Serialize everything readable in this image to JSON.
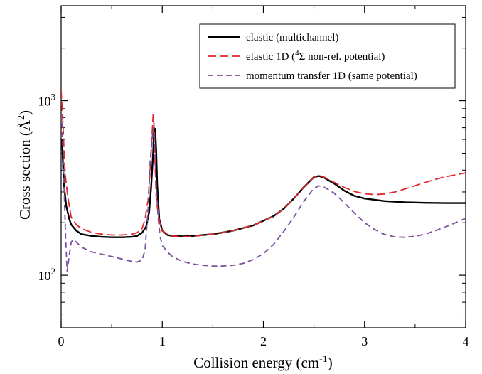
{
  "chart_data": {
    "type": "line",
    "title": "",
    "xlabel": "Collision energy (cm",
    "xlabel_sup": "-1",
    "xlabel_tail": ")",
    "ylabel": "Cross section (Å",
    "ylabel_sup": "2",
    "ylabel_tail": ")",
    "y_scale": "log",
    "xlim": [
      0,
      4
    ],
    "ylim": [
      50,
      3500
    ],
    "x_ticks": [
      0,
      1,
      2,
      3,
      4
    ],
    "x_tick_labels": [
      "0",
      "1",
      "2",
      "3",
      "4"
    ],
    "y_ticks": [
      100,
      1000
    ],
    "y_tick_label_base": [
      "10",
      "10"
    ],
    "y_tick_label_exp": [
      "2",
      "3"
    ],
    "grid": false,
    "legend_position": "top-right",
    "legend": [
      {
        "series": 0,
        "parts": [
          "elastic (multichannel)"
        ]
      },
      {
        "series": 1,
        "parts": [
          "elastic 1D (",
          "4",
          "Σ non-rel. potential)"
        ]
      },
      {
        "series": 2,
        "parts": [
          "momentum transfer 1D (same potential)"
        ]
      }
    ],
    "series": [
      {
        "color": "#000000",
        "dash": "solid",
        "x": [
          0.01,
          0.02,
          0.03,
          0.05,
          0.08,
          0.1,
          0.15,
          0.2,
          0.3,
          0.4,
          0.5,
          0.6,
          0.7,
          0.75,
          0.8,
          0.84,
          0.87,
          0.89,
          0.91,
          0.92,
          0.93,
          0.94,
          0.95,
          0.97,
          1.0,
          1.05,
          1.1,
          1.2,
          1.3,
          1.5,
          1.7,
          1.9,
          2.1,
          2.2,
          2.3,
          2.4,
          2.5,
          2.55,
          2.6,
          2.7,
          2.8,
          2.9,
          3.0,
          3.2,
          3.4,
          3.6,
          3.8,
          4.0
        ],
        "y": [
          600,
          420,
          320,
          250,
          210,
          195,
          180,
          172,
          168,
          166,
          165,
          165,
          166,
          168,
          175,
          190,
          230,
          320,
          500,
          680,
          690,
          520,
          330,
          210,
          180,
          170,
          168,
          167,
          168,
          172,
          180,
          193,
          218,
          240,
          275,
          320,
          365,
          370,
          362,
          335,
          305,
          285,
          275,
          266,
          262,
          260,
          259,
          259
        ]
      },
      {
        "color": "#e0282c",
        "dash": "long-dash",
        "x": [
          0.0,
          0.01,
          0.02,
          0.03,
          0.04,
          0.06,
          0.08,
          0.1,
          0.15,
          0.2,
          0.3,
          0.4,
          0.5,
          0.6,
          0.7,
          0.75,
          0.8,
          0.83,
          0.86,
          0.88,
          0.9,
          0.91,
          0.92,
          0.93,
          0.94,
          0.96,
          0.98,
          1.0,
          1.05,
          1.1,
          1.2,
          1.3,
          1.5,
          1.7,
          1.9,
          2.1,
          2.2,
          2.3,
          2.4,
          2.5,
          2.55,
          2.6,
          2.7,
          2.8,
          2.9,
          3.0,
          3.1,
          3.2,
          3.3,
          3.4,
          3.5,
          3.6,
          3.7,
          3.8,
          3.9,
          4.0
        ],
        "y": [
          1150,
          900,
          700,
          500,
          380,
          300,
          250,
          215,
          195,
          185,
          176,
          172,
          170,
          170,
          172,
          175,
          185,
          210,
          270,
          400,
          650,
          830,
          700,
          420,
          280,
          220,
          195,
          180,
          172,
          168,
          166,
          167,
          172,
          180,
          193,
          218,
          240,
          275,
          320,
          365,
          373,
          365,
          340,
          318,
          302,
          293,
          290,
          292,
          300,
          312,
          326,
          340,
          354,
          366,
          376,
          386
        ]
      },
      {
        "color": "#7b4fa0",
        "dash": "dash",
        "x": [
          0.0,
          0.01,
          0.02,
          0.03,
          0.045,
          0.06,
          0.08,
          0.1,
          0.12,
          0.15,
          0.2,
          0.3,
          0.4,
          0.5,
          0.6,
          0.7,
          0.75,
          0.8,
          0.83,
          0.86,
          0.88,
          0.9,
          0.91,
          0.92,
          0.94,
          0.96,
          0.98,
          1.0,
          1.05,
          1.1,
          1.2,
          1.3,
          1.4,
          1.5,
          1.6,
          1.7,
          1.8,
          1.9,
          2.0,
          2.1,
          2.2,
          2.3,
          2.4,
          2.5,
          2.55,
          2.6,
          2.7,
          2.8,
          2.9,
          3.0,
          3.1,
          3.2,
          3.3,
          3.4,
          3.5,
          3.6,
          3.7,
          3.8,
          3.9,
          4.0
        ],
        "y": [
          850,
          700,
          500,
          300,
          160,
          105,
          130,
          155,
          160,
          155,
          145,
          136,
          132,
          128,
          124,
          120,
          119,
          122,
          140,
          240,
          450,
          600,
          700,
          620,
          330,
          210,
          165,
          148,
          136,
          128,
          120,
          116,
          114,
          113,
          113,
          114,
          117,
          123,
          133,
          150,
          178,
          215,
          265,
          315,
          325,
          320,
          295,
          260,
          227,
          200,
          183,
          171,
          166,
          165,
          167,
          172,
          180,
          189,
          200,
          212
        ]
      }
    ]
  }
}
